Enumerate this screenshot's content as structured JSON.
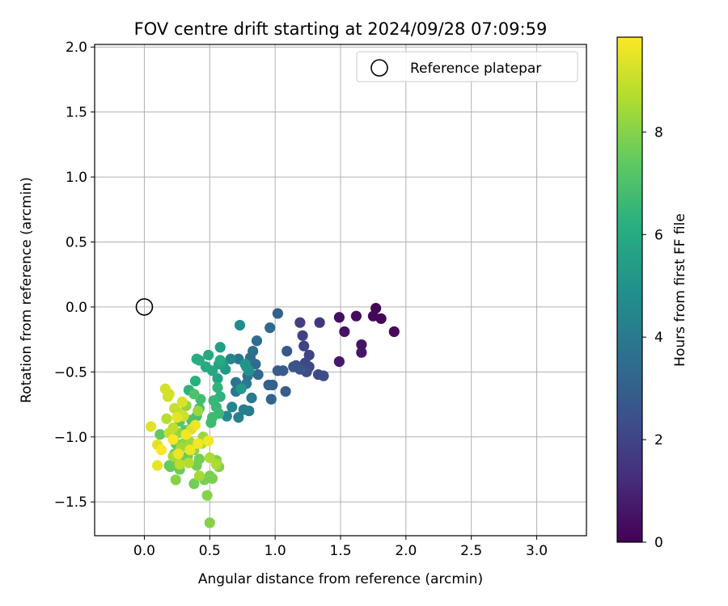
{
  "chart_data": {
    "type": "scatter",
    "title": "FOV centre drift starting at 2024/09/28 07:09:59",
    "xlabel": "Angular distance from reference (arcmin)",
    "ylabel": "Rotation from reference (arcmin)",
    "xlim": [
      -0.38,
      3.38
    ],
    "ylim": [
      -1.76,
      2.02
    ],
    "xticks": [
      "0.0",
      "0.5",
      "1.0",
      "1.5",
      "2.0",
      "2.5",
      "3.0"
    ],
    "yticks": [
      "−1.5",
      "−1.0",
      "−0.5",
      "0.0",
      "0.5",
      "1.0",
      "1.5",
      "2.0"
    ],
    "grid": true,
    "legend": {
      "position": "top-right",
      "entries": [
        "Reference platepar"
      ]
    },
    "reference_point": {
      "x": 0.0,
      "y": 0.0
    },
    "colorbar": {
      "label": "Hours from first FF file",
      "range": [
        0,
        9.85
      ],
      "ticks": [
        "0",
        "2",
        "4",
        "6",
        "8"
      ],
      "colormap": "viridis"
    },
    "points": [
      [
        1.77,
        -0.01,
        0.1
      ],
      [
        1.75,
        -0.07,
        0.2
      ],
      [
        1.81,
        -0.09,
        0.15
      ],
      [
        1.62,
        -0.07,
        0.3
      ],
      [
        1.49,
        -0.08,
        0.4
      ],
      [
        1.53,
        -0.19,
        0.5
      ],
      [
        1.91,
        -0.19,
        0.25
      ],
      [
        1.66,
        -0.29,
        0.55
      ],
      [
        1.66,
        -0.35,
        0.6
      ],
      [
        1.49,
        -0.42,
        0.7
      ],
      [
        1.34,
        -0.12,
        1.6
      ],
      [
        1.19,
        -0.12,
        1.8
      ],
      [
        1.21,
        -0.22,
        1.9
      ],
      [
        1.22,
        -0.3,
        2.0
      ],
      [
        1.26,
        -0.37,
        2.0
      ],
      [
        1.23,
        -0.43,
        2.1
      ],
      [
        1.26,
        -0.46,
        2.2
      ],
      [
        1.24,
        -0.5,
        2.3
      ],
      [
        1.16,
        -0.45,
        2.4
      ],
      [
        1.33,
        -0.52,
        2.2
      ],
      [
        1.37,
        -0.53,
        2.3
      ],
      [
        1.19,
        -0.48,
        2.5
      ],
      [
        1.14,
        -0.46,
        2.6
      ],
      [
        1.09,
        -0.34,
        2.7
      ],
      [
        1.06,
        -0.49,
        2.8
      ],
      [
        1.02,
        -0.49,
        2.9
      ],
      [
        1.08,
        -0.65,
        2.9
      ],
      [
        1.02,
        -0.05,
        3.0
      ],
      [
        0.98,
        -0.6,
        3.0
      ],
      [
        0.95,
        -0.6,
        3.1
      ],
      [
        0.97,
        -0.71,
        3.2
      ],
      [
        0.96,
        -0.16,
        3.3
      ],
      [
        0.87,
        -0.52,
        3.3
      ],
      [
        0.85,
        -0.44,
        3.4
      ],
      [
        0.86,
        -0.26,
        3.5
      ],
      [
        0.83,
        -0.34,
        3.6
      ],
      [
        0.81,
        -0.39,
        3.6
      ],
      [
        0.79,
        -0.53,
        3.7
      ],
      [
        0.72,
        -0.4,
        3.8
      ],
      [
        0.7,
        -0.58,
        3.8
      ],
      [
        0.7,
        -0.65,
        3.9
      ],
      [
        0.78,
        -0.59,
        4.0
      ],
      [
        0.82,
        -0.7,
        4.0
      ],
      [
        0.8,
        -0.8,
        4.1
      ],
      [
        0.76,
        -0.79,
        4.2
      ],
      [
        0.72,
        -0.85,
        4.3
      ],
      [
        0.66,
        -0.4,
        4.4
      ],
      [
        0.67,
        -0.77,
        4.5
      ],
      [
        0.63,
        -0.84,
        4.6
      ],
      [
        0.73,
        -0.14,
        4.8
      ],
      [
        0.78,
        -0.46,
        4.9
      ],
      [
        0.8,
        -0.49,
        5.0
      ],
      [
        0.77,
        -0.44,
        5.1
      ],
      [
        0.74,
        -0.63,
        5.2
      ],
      [
        0.62,
        -0.48,
        5.3
      ],
      [
        0.6,
        -0.44,
        5.4
      ],
      [
        0.58,
        -0.31,
        5.5
      ],
      [
        0.57,
        -0.44,
        5.6
      ],
      [
        0.56,
        -0.55,
        5.7
      ],
      [
        0.52,
        -0.49,
        5.8
      ],
      [
        0.49,
        -0.37,
        5.9
      ],
      [
        0.47,
        -0.46,
        6.0
      ],
      [
        0.58,
        -0.41,
        6.0
      ],
      [
        0.4,
        -0.4,
        6.1
      ],
      [
        0.42,
        -0.41,
        6.1
      ],
      [
        0.39,
        -0.57,
        6.2
      ],
      [
        0.34,
        -0.64,
        6.3
      ],
      [
        0.56,
        -0.62,
        6.4
      ],
      [
        0.58,
        -0.69,
        6.3
      ],
      [
        0.53,
        -0.72,
        6.5
      ],
      [
        0.55,
        -0.77,
        6.5
      ],
      [
        0.57,
        -0.82,
        6.6
      ],
      [
        0.52,
        -0.85,
        6.7
      ],
      [
        0.51,
        -0.89,
        6.7
      ],
      [
        0.43,
        -0.71,
        6.8
      ],
      [
        0.42,
        -0.78,
        6.8
      ],
      [
        0.4,
        -0.84,
        6.9
      ],
      [
        0.38,
        -0.67,
        7.0
      ],
      [
        0.36,
        -0.87,
        7.0
      ],
      [
        0.36,
        -0.93,
        7.1
      ],
      [
        0.31,
        -0.95,
        7.2
      ],
      [
        0.27,
        -0.88,
        7.2
      ],
      [
        0.24,
        -1.05,
        7.3
      ],
      [
        0.25,
        -1.2,
        7.3
      ],
      [
        0.12,
        -0.98,
        7.4
      ],
      [
        0.19,
        -1.22,
        7.4
      ],
      [
        0.23,
        -1.13,
        7.5
      ],
      [
        0.2,
        -1.23,
        7.5
      ],
      [
        0.27,
        -1.25,
        7.6
      ],
      [
        0.3,
        -1.18,
        7.6
      ],
      [
        0.33,
        -1.15,
        7.6
      ],
      [
        0.38,
        -1.36,
        7.7
      ],
      [
        0.4,
        -1.22,
        7.7
      ],
      [
        0.42,
        -1.17,
        7.7
      ],
      [
        0.46,
        -1.33,
        7.8
      ],
      [
        0.5,
        -1.3,
        7.8
      ],
      [
        0.52,
        -1.32,
        7.8
      ],
      [
        0.55,
        -1.18,
        7.9
      ],
      [
        0.57,
        -1.23,
        7.9
      ],
      [
        0.48,
        -1.45,
        8.0
      ],
      [
        0.5,
        -1.66,
        8.0
      ],
      [
        0.24,
        -1.33,
        8.0
      ],
      [
        0.38,
        -1.1,
        8.1
      ],
      [
        0.3,
        -1.05,
        8.1
      ],
      [
        0.26,
        -0.97,
        8.2
      ],
      [
        0.32,
        -0.76,
        8.2
      ],
      [
        0.41,
        -0.8,
        8.3
      ],
      [
        0.45,
        -1.0,
        8.3
      ],
      [
        0.35,
        -1.04,
        8.4
      ],
      [
        0.28,
        -1.08,
        8.4
      ],
      [
        0.22,
        -1.15,
        8.5
      ],
      [
        0.42,
        -1.3,
        8.5
      ],
      [
        0.5,
        -1.16,
        8.6
      ],
      [
        0.55,
        -1.21,
        8.6
      ],
      [
        0.44,
        -1.05,
        8.7
      ],
      [
        0.34,
        -1.2,
        8.7
      ],
      [
        0.27,
        -1.21,
        8.8
      ],
      [
        0.17,
        -0.86,
        8.8
      ],
      [
        0.19,
        -0.97,
        8.9
      ],
      [
        0.22,
        -0.93,
        8.9
      ],
      [
        0.26,
        -0.81,
        9.0
      ],
      [
        0.23,
        -0.78,
        9.0
      ],
      [
        0.3,
        -0.84,
        9.1
      ],
      [
        0.18,
        -0.69,
        9.1
      ],
      [
        0.16,
        -0.63,
        9.2
      ],
      [
        0.19,
        -0.67,
        9.2
      ],
      [
        0.36,
        -0.94,
        9.3
      ],
      [
        0.29,
        -0.73,
        9.3
      ],
      [
        0.05,
        -0.92,
        9.4
      ],
      [
        0.1,
        -1.06,
        9.4
      ],
      [
        0.1,
        -1.22,
        9.5
      ],
      [
        0.25,
        -0.85,
        9.5
      ],
      [
        0.39,
        -0.91,
        9.6
      ],
      [
        0.26,
        -1.13,
        9.6
      ],
      [
        0.32,
        -0.98,
        9.7
      ],
      [
        0.49,
        -1.03,
        9.7
      ],
      [
        0.13,
        -1.1,
        9.8
      ],
      [
        0.22,
        -1.02,
        9.8
      ],
      [
        0.41,
        -1.05,
        9.7
      ],
      [
        0.35,
        -1.1,
        9.6
      ]
    ]
  }
}
